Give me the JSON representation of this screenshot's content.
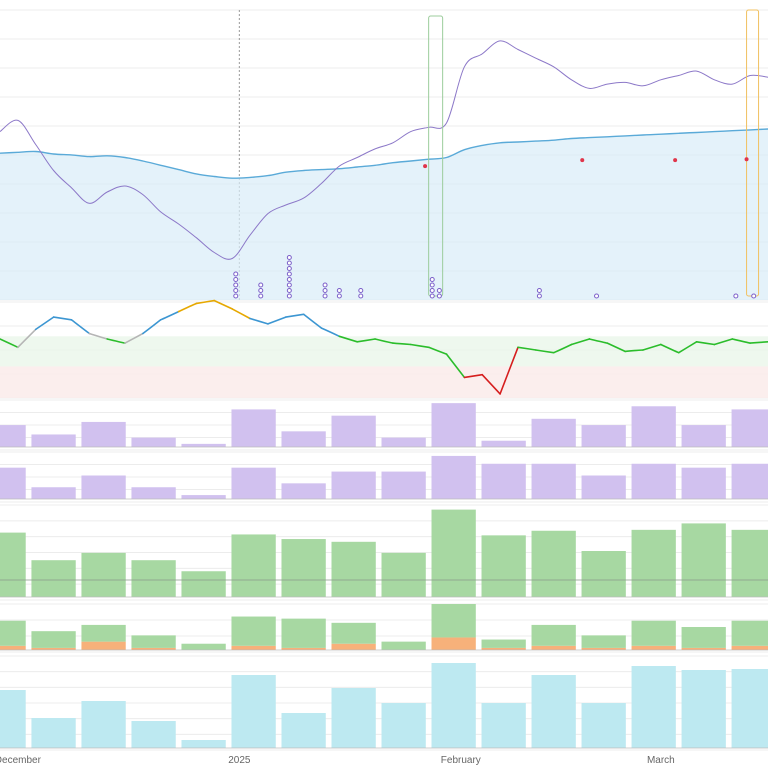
{
  "chart_data": {
    "type": "line",
    "x_axis": {
      "tick_labels": [
        {
          "text": "December",
          "x_day": 0
        },
        {
          "text": "2025",
          "x_day": 31
        },
        {
          "text": "February",
          "x_day": 62
        },
        {
          "text": "March",
          "x_day": 90
        }
      ],
      "range_days": [
        -2.5,
        105
      ]
    },
    "colors": {
      "fitness_line": "#5aaad8",
      "fitness_fill": "#d9ecf8",
      "daily_line": "#8c78c8",
      "form_positive": "#2bbd2b",
      "form_negative": "#d61e1e",
      "form_neutral": "#b5b5b5",
      "form_blue": "#3c96d2",
      "form_orange": "#e6a800",
      "bar_purple": "#d1c1ef",
      "bar_green": "#a7d8a2",
      "bar_orange": "#f7b17a",
      "bar_cyan": "#bde9f1",
      "marker_red": "#e0354a",
      "marker_purple": "#7b5fc9"
    },
    "panel1": {
      "x": [
        -2.5,
        0,
        2.5,
        5,
        7.5,
        10,
        12.5,
        15,
        17.5,
        20,
        22.5,
        25,
        27.5,
        30,
        32.5,
        35,
        37.5,
        40,
        42.5,
        45,
        47.5,
        50,
        52.5,
        55,
        57.5,
        60,
        62.5,
        65,
        67.5,
        70,
        72.5,
        75,
        77.5,
        80,
        82.5,
        85,
        87.5,
        90,
        92.5,
        95,
        97.5,
        100,
        102.5,
        105
      ],
      "fitness": [
        10,
        11,
        12,
        9,
        8,
        6,
        7,
        5,
        1,
        -4,
        -9,
        -14,
        -17,
        -19,
        -18,
        -16,
        -12,
        -10,
        -9,
        -8,
        -6,
        -4,
        -1,
        1,
        3,
        5,
        14,
        19,
        22,
        23,
        24,
        25,
        27,
        28,
        29,
        30,
        31,
        32,
        33,
        34,
        35,
        36,
        37,
        38
      ],
      "daily": [
        35,
        48,
        20,
        -10,
        -30,
        -48,
        -35,
        -28,
        -38,
        -58,
        -72,
        -88,
        -105,
        -112,
        -85,
        -60,
        -50,
        -42,
        -25,
        -5,
        5,
        15,
        22,
        35,
        40,
        45,
        110,
        125,
        140,
        130,
        120,
        110,
        95,
        85,
        90,
        92,
        88,
        95,
        100,
        105,
        95,
        90,
        100,
        98
      ],
      "markers": {
        "red": [
          {
            "x": 57,
            "y": -5
          },
          {
            "x": 79,
            "y": 2
          },
          {
            "x": 92,
            "y": 2
          },
          {
            "x": 102,
            "y": 3
          }
        ],
        "purple_columns": [
          {
            "x": 30.5,
            "n": 5
          },
          {
            "x": 34,
            "n": 3
          },
          {
            "x": 38,
            "n": 8
          },
          {
            "x": 43,
            "n": 3
          },
          {
            "x": 45,
            "n": 2
          },
          {
            "x": 48,
            "n": 2
          },
          {
            "x": 58,
            "n": 4
          },
          {
            "x": 59,
            "n": 2
          },
          {
            "x": 73,
            "n": 2
          },
          {
            "x": 81,
            "n": 1
          },
          {
            "x": 100.5,
            "n": 1
          },
          {
            "x": 103,
            "n": 1
          }
        ]
      },
      "ylim": [
        -160,
        170
      ]
    },
    "panel2_form": {
      "x": [
        -2.5,
        0,
        2.5,
        5,
        7.5,
        10,
        12.5,
        15,
        17.5,
        20,
        22.5,
        25,
        27.5,
        30,
        32.5,
        35,
        37.5,
        40,
        42.5,
        45,
        47.5,
        50,
        52.5,
        55,
        57.5,
        60,
        62.5,
        65,
        67.5,
        70,
        72.5,
        75,
        77.5,
        80,
        82.5,
        85,
        87.5,
        90,
        92.5,
        95,
        97.5,
        100,
        102.5,
        105
      ],
      "values": [
        8,
        2,
        15,
        24,
        22,
        12,
        8,
        5,
        12,
        22,
        28,
        34,
        36,
        30,
        23,
        19,
        24,
        26,
        16,
        10,
        6,
        8,
        5,
        4,
        2,
        -3,
        -20,
        -18,
        -32,
        2,
        0,
        -2,
        4,
        8,
        5,
        -1,
        0,
        4,
        -2,
        6,
        4,
        8,
        5,
        6
      ],
      "zones": {
        "green": [
          10,
          -12
        ],
        "red": [
          -12,
          -35
        ]
      },
      "ylim": [
        -35,
        35
      ]
    },
    "bar_panels": [
      {
        "name": "purple-1",
        "categories": [
          -2,
          5,
          12,
          19,
          26,
          33,
          40,
          47,
          54,
          61,
          68,
          75,
          82,
          89,
          96,
          103
        ],
        "values": [
          7,
          4,
          8,
          3,
          1,
          12,
          5,
          10,
          3,
          14,
          2,
          9,
          7,
          13,
          7,
          12
        ],
        "ylim": [
          0,
          15
        ]
      },
      {
        "name": "purple-2",
        "categories": [
          -2,
          5,
          12,
          19,
          26,
          33,
          40,
          47,
          54,
          61,
          68,
          75,
          82,
          89,
          96,
          103
        ],
        "values": [
          8,
          3,
          6,
          3,
          1,
          8,
          4,
          7,
          7,
          11,
          9,
          9,
          6,
          9,
          8,
          9
        ],
        "ylim": [
          0,
          12
        ]
      },
      {
        "name": "green",
        "categories": [
          -2,
          5,
          12,
          19,
          26,
          33,
          40,
          47,
          54,
          61,
          68,
          75,
          82,
          89,
          96,
          103
        ],
        "values": [
          70,
          40,
          48,
          40,
          28,
          68,
          63,
          60,
          48,
          95,
          67,
          72,
          50,
          73,
          80,
          73
        ],
        "ylim": [
          0,
          100
        ]
      },
      {
        "name": "stacked",
        "categories": [
          -2,
          5,
          12,
          19,
          26,
          33,
          40,
          47,
          54,
          61,
          68,
          75,
          82,
          89,
          96,
          103
        ],
        "series": [
          {
            "name": "",
            "values": [
              1,
              0.5,
              2,
              0.5,
              0,
              1,
              0.5,
              1.5,
              0,
              3,
              0.5,
              1,
              0.5,
              1,
              0.5,
              1
            ]
          },
          {
            "name": "",
            "values": [
              6,
              4,
              4,
              3,
              1.5,
              7,
              7,
              5,
              2,
              8,
              2,
              5,
              3,
              6,
              5,
              6
            ]
          }
        ],
        "ylim": [
          0,
          11
        ]
      },
      {
        "name": "cyan",
        "categories": [
          -2,
          5,
          12,
          19,
          26,
          33,
          40,
          47,
          54,
          61,
          68,
          75,
          82,
          89,
          96,
          103
        ],
        "values": [
          58,
          30,
          47,
          27,
          8,
          73,
          35,
          60,
          45,
          85,
          45,
          73,
          45,
          82,
          78,
          79
        ],
        "ylim": [
          0,
          92
        ]
      }
    ]
  }
}
